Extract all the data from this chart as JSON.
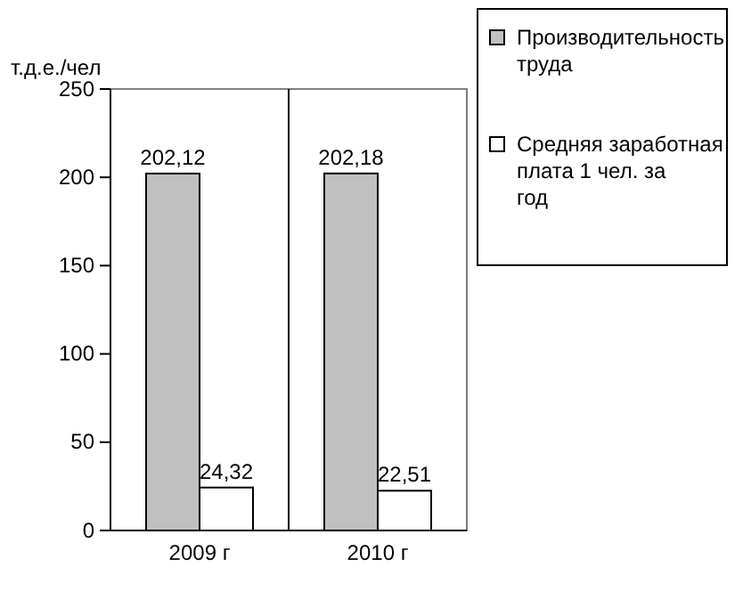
{
  "chart_data": {
    "type": "bar",
    "ylabel": "т.д.е./чел",
    "categories": [
      "2009 г",
      "2010 г"
    ],
    "series": [
      {
        "name": "Производительность труда",
        "color": "#c0c0c0",
        "values": [
          202.12,
          202.18
        ],
        "value_labels": [
          "202,12",
          "202,18"
        ]
      },
      {
        "name": "Средняя заработная плата 1 чел. за год",
        "color": "#ffffff",
        "values": [
          24.32,
          22.51
        ],
        "value_labels": [
          "24,32",
          "22,51"
        ]
      }
    ],
    "ylim": [
      0,
      250
    ],
    "yticks": [
      0,
      50,
      100,
      150,
      200,
      250
    ],
    "grid": "x",
    "legend": "right"
  }
}
